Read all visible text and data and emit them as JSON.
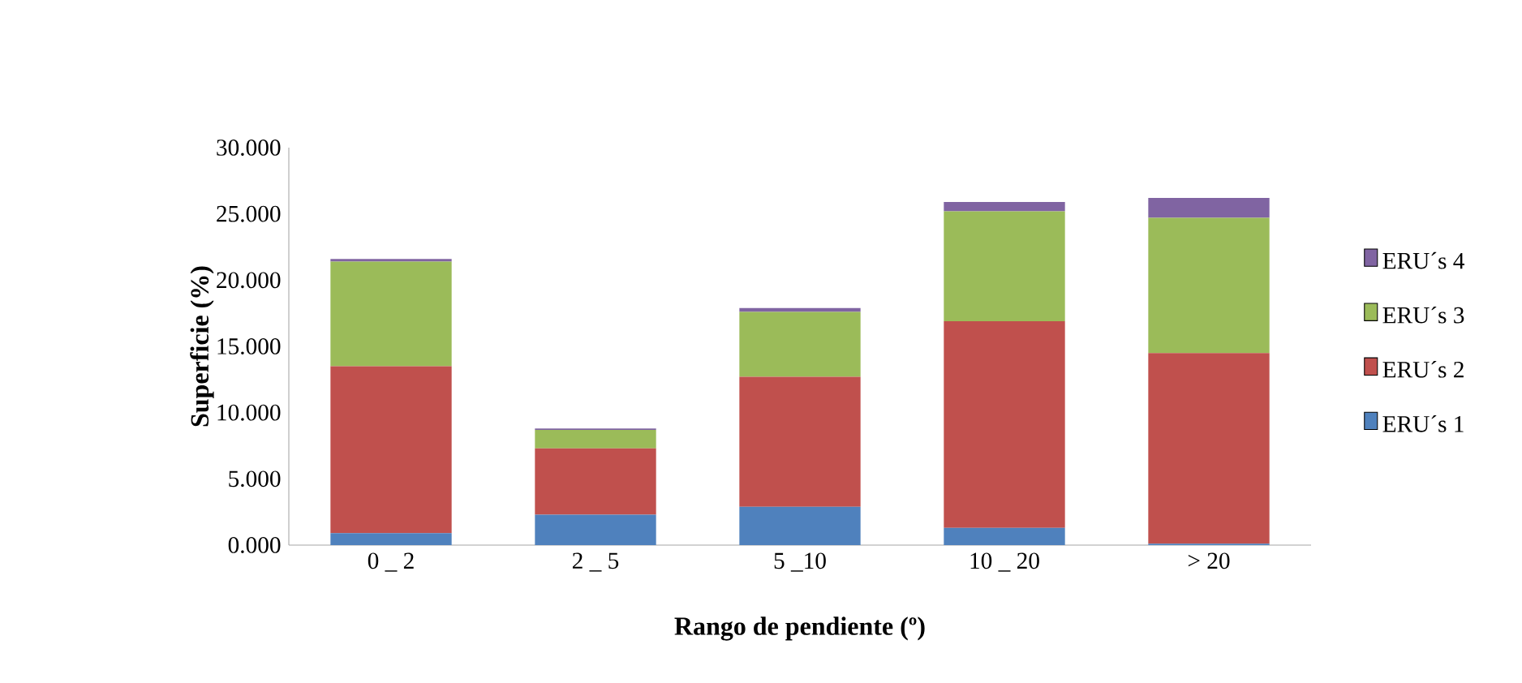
{
  "chart_data": {
    "type": "bar",
    "stacked": true,
    "xlabel": "Rango de pendiente (º)",
    "ylabel": "Superficie (%)",
    "categories": [
      "0 _ 2",
      "2 _ 5",
      "5 _10",
      "10 _ 20",
      "> 20"
    ],
    "series": [
      {
        "name": "ERU´s 1",
        "color": "#4f81bd",
        "values": [
          0.9,
          2.3,
          2.9,
          1.3,
          0.1
        ]
      },
      {
        "name": "ERU´s 2",
        "color": "#c0504d",
        "values": [
          12.6,
          5.0,
          9.8,
          15.6,
          14.4
        ]
      },
      {
        "name": "ERU´s 3",
        "color": "#9bbb59",
        "values": [
          7.9,
          1.4,
          4.9,
          8.3,
          10.2
        ]
      },
      {
        "name": "ERU´s 4",
        "color": "#8064a2",
        "values": [
          0.2,
          0.1,
          0.3,
          0.7,
          1.5
        ]
      }
    ],
    "ylim": [
      0,
      30
    ],
    "yticks": [
      {
        "value": 0,
        "label": "0.000"
      },
      {
        "value": 5,
        "label": "5.000"
      },
      {
        "value": 10,
        "label": "10.000"
      },
      {
        "value": 15,
        "label": "15.000"
      },
      {
        "value": 20,
        "label": "20.000"
      },
      {
        "value": 25,
        "label": "25.000"
      },
      {
        "value": 30,
        "label": "30.000"
      }
    ],
    "legend": "right",
    "grid": false
  }
}
